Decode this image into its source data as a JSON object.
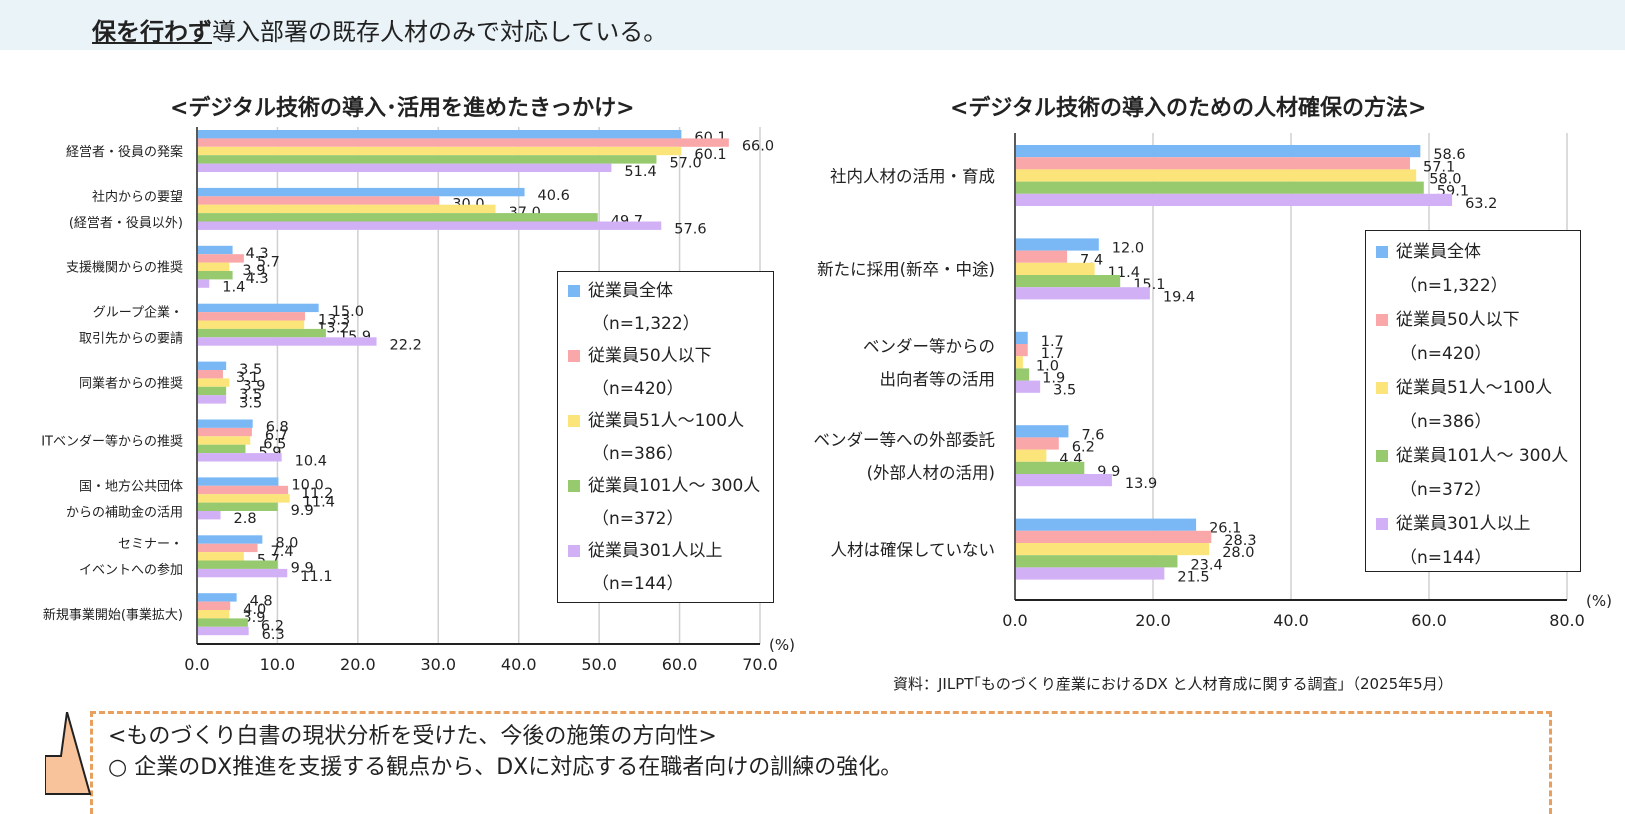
{
  "intro": {
    "emphasis": "保を行わず",
    "rest": "導入部署の既存人材のみで対応している。"
  },
  "colors": [
    "#7ab8f5",
    "#f9a7a8",
    "#fbe57a",
    "#97c96f",
    "#d2b0f5"
  ],
  "legend": [
    {
      "name": "従業員全体",
      "n": "（n=1,322）"
    },
    {
      "name": "従業員50人以下",
      "n": "（n=420）"
    },
    {
      "name": "従業員51人～100人",
      "n": "（n=386）"
    },
    {
      "name": "従業員101人～ 300人",
      "n": "（n=372）"
    },
    {
      "name": "従業員301人以上",
      "n": "（n=144）"
    }
  ],
  "chart_data": [
    {
      "type": "bar",
      "orientation": "horizontal",
      "title": "<デジタル技術の導入･活用を進めたきっかけ>",
      "unit": "(%)",
      "xlim": [
        0,
        70
      ],
      "ticks": [
        "0.0",
        "10.0",
        "20.0",
        "30.0",
        "40.0",
        "50.0",
        "60.0",
        "70.0"
      ],
      "categories": [
        [
          "経営者・役員の発案"
        ],
        [
          "社内からの要望",
          "(経営者・役員以外)"
        ],
        [
          "支援機関からの推奨"
        ],
        [
          "グループ企業・",
          "取引先からの要請"
        ],
        [
          "同業者からの推奨"
        ],
        [
          "ITベンダー等からの推奨"
        ],
        [
          "国・地方公共団体",
          "からの補助金の活用"
        ],
        [
          "セミナー・",
          "イベントへの参加"
        ],
        [
          "新規事業開始(事業拡大)"
        ]
      ],
      "series": [
        {
          "name": "従業員全体",
          "values": [
            60.1,
            40.6,
            4.3,
            15.0,
            3.5,
            6.8,
            10.0,
            8.0,
            4.8
          ]
        },
        {
          "name": "従業員50人以下",
          "values": [
            66.0,
            30.0,
            5.7,
            13.3,
            3.1,
            6.7,
            11.2,
            7.4,
            4.0
          ]
        },
        {
          "name": "従業員51人～100人",
          "values": [
            60.1,
            37.0,
            3.9,
            13.2,
            3.9,
            6.5,
            11.4,
            5.7,
            3.9
          ]
        },
        {
          "name": "従業員101人～ 300人",
          "values": [
            57.0,
            49.7,
            4.3,
            15.9,
            3.5,
            5.9,
            9.9,
            9.9,
            6.2
          ]
        },
        {
          "name": "従業員301人以上",
          "values": [
            51.4,
            57.6,
            1.4,
            22.2,
            3.5,
            10.4,
            2.8,
            11.1,
            6.3
          ]
        }
      ]
    },
    {
      "type": "bar",
      "orientation": "horizontal",
      "title": "<デジタル技術の導入のための人材確保の方法>",
      "unit": "(%)",
      "xlim": [
        0,
        80
      ],
      "ticks": [
        "0.0",
        "20.0",
        "40.0",
        "60.0",
        "80.0"
      ],
      "categories": [
        [
          "社内人材の活用・育成"
        ],
        [
          "新たに採用(新卒・中途)"
        ],
        [
          "ベンダー等からの",
          "出向者等の活用"
        ],
        [
          "ベンダー等への外部委託",
          "(外部人材の活用)"
        ],
        [
          "人材は確保していない"
        ]
      ],
      "series": [
        {
          "name": "従業員全体",
          "values": [
            58.6,
            12.0,
            1.7,
            7.6,
            26.1
          ]
        },
        {
          "name": "従業員50人以下",
          "values": [
            57.1,
            7.4,
            1.7,
            6.2,
            28.3
          ]
        },
        {
          "name": "従業員51人～100人",
          "values": [
            58.0,
            11.4,
            1.0,
            4.4,
            28.0
          ]
        },
        {
          "name": "従業員101人～ 300人",
          "values": [
            59.1,
            15.1,
            1.9,
            9.9,
            23.4
          ]
        },
        {
          "name": "従業員301人以上",
          "values": [
            63.2,
            19.4,
            3.5,
            13.9,
            21.5
          ]
        }
      ]
    }
  ],
  "source": "資料：JILPT｢ものづくり産業におけるDX と人材育成に関する調査｣（2025年5月）",
  "policy": {
    "heading": "<ものづくり白書の現状分析を受けた、今後の施策の方向性>",
    "item": "○ 企業のDX推進を支援する観点から、DXに対応する在職者向けの訓練の強化。"
  }
}
